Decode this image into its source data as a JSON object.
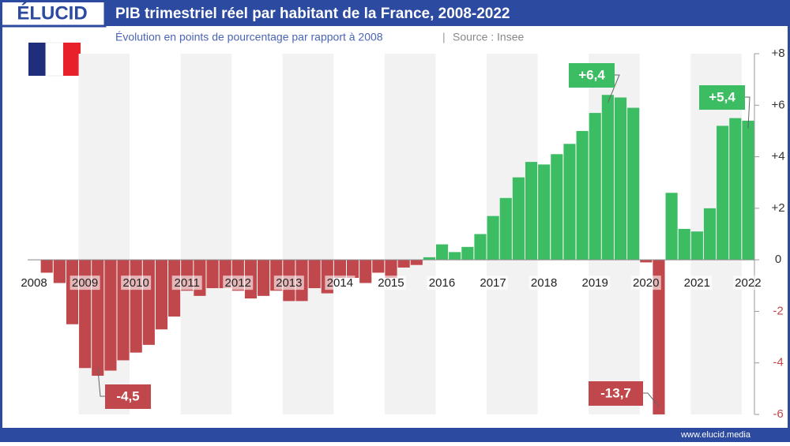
{
  "brand": "ÉLUCID",
  "footer": "www.elucid.media",
  "chart_data": {
    "type": "bar",
    "title": "PIB trimestriel réel par habitant de la France, 2008-2022",
    "subtitle": "Évolution en points de pourcentage par rapport à 2008",
    "source": "Source : Insee",
    "categories": [
      "2008",
      null,
      null,
      null,
      "2009",
      null,
      null,
      null,
      "2010",
      null,
      null,
      null,
      "2011",
      null,
      null,
      null,
      "2012",
      null,
      null,
      null,
      "2013",
      null,
      null,
      null,
      "2014",
      null,
      null,
      null,
      "2015",
      null,
      null,
      null,
      "2016",
      null,
      null,
      null,
      "2017",
      null,
      null,
      null,
      "2018",
      null,
      null,
      null,
      "2019",
      null,
      null,
      null,
      "2020",
      null,
      null,
      null,
      "2021",
      null,
      null,
      null,
      "2022"
    ],
    "values": [
      0,
      -0.5,
      -0.9,
      -2.5,
      -4.2,
      -4.5,
      -4.3,
      -3.9,
      -3.6,
      -3.3,
      -2.7,
      -2.2,
      -1.2,
      -1.4,
      -1.1,
      -1.1,
      -1.2,
      -1.5,
      -1.4,
      -1.2,
      -1.6,
      -1.6,
      -1.1,
      -1.3,
      -0.7,
      -0.7,
      -0.9,
      -0.5,
      -0.7,
      -0.3,
      -0.2,
      0.1,
      0.6,
      0.3,
      0.5,
      1.0,
      1.7,
      2.4,
      3.2,
      3.8,
      3.7,
      4.1,
      4.5,
      5.0,
      5.7,
      6.4,
      6.3,
      5.9,
      -0.1,
      -13.7,
      2.6,
      1.2,
      1.1,
      2.0,
      5.2,
      5.5,
      5.4
    ],
    "value_labels": [
      null,
      null,
      null,
      null,
      null,
      "-4,5",
      null,
      null,
      null,
      null,
      null,
      null,
      null,
      null,
      null,
      null,
      null,
      null,
      null,
      null,
      null,
      null,
      null,
      null,
      null,
      null,
      null,
      null,
      null,
      null,
      null,
      null,
      null,
      null,
      null,
      null,
      null,
      null,
      null,
      null,
      null,
      null,
      null,
      null,
      null,
      "+6,4",
      null,
      null,
      null,
      "-13,7",
      null,
      null,
      null,
      null,
      null,
      null,
      "+5,4"
    ],
    "positive_color": "#3dbd63",
    "negative_color": "#c0474b",
    "ylim": [
      -6,
      8
    ],
    "yticks": [
      {
        "value": 8,
        "label": "+8"
      },
      {
        "value": 6,
        "label": "+6"
      },
      {
        "value": 4,
        "label": "+4"
      },
      {
        "value": 2,
        "label": "+2"
      },
      0,
      -2,
      -4,
      -6
    ]
  }
}
